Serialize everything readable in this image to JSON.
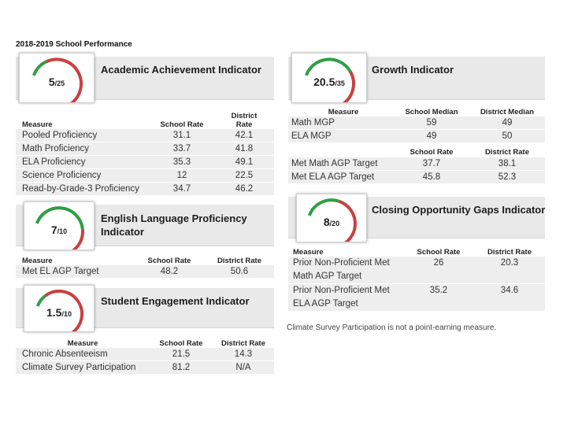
{
  "page_title": "2018-2019 School Performance",
  "colors": {
    "gauge_red": "#c9403f",
    "gauge_green": "#2f9e44",
    "band": "#e9e9e9",
    "row_shade": "#eeeeee"
  },
  "academic": {
    "title": "Academic Achievement Indicator",
    "score": "5",
    "max": "/25",
    "gauge_fraction": 0.2,
    "headers": [
      "Measure",
      "School Rate",
      "District Rate"
    ],
    "rows": [
      {
        "measure": "Pooled Proficiency",
        "school": "31.1",
        "district": "42.1"
      },
      {
        "measure": "Math Proficiency",
        "school": "33.7",
        "district": "41.8"
      },
      {
        "measure": "ELA Proficiency",
        "school": "35.3",
        "district": "49.1"
      },
      {
        "measure": "Science Proficiency",
        "school": "12",
        "district": "22.5"
      },
      {
        "measure": "Read-by-Grade-3 Proficiency",
        "school": "34.7",
        "district": "46.2"
      }
    ]
  },
  "growth": {
    "title": "Growth Indicator",
    "score": "20.5",
    "max": "/35",
    "gauge_fraction": 0.586,
    "headers": [
      "Measure",
      "School Median",
      "District Median"
    ],
    "rows": [
      {
        "measure": "Math MGP",
        "school": "59",
        "district": "49"
      },
      {
        "measure": "ELA MGP",
        "school": "49",
        "district": "50"
      }
    ],
    "sub_headers": [
      "School Rate",
      "District Rate"
    ],
    "rows2": [
      {
        "measure": "Met Math AGP Target",
        "school": "37.7",
        "district": "38.1"
      },
      {
        "measure": "Met ELA AGP Target",
        "school": "45.8",
        "district": "52.3"
      }
    ]
  },
  "elp": {
    "title_line1": "English Language Proficiency",
    "title_line2": "Indicator",
    "score": "7",
    "max": "/10",
    "gauge_fraction": 0.7,
    "headers": [
      "Measure",
      "School Rate",
      "District Rate"
    ],
    "rows": [
      {
        "measure": "Met EL AGP Target",
        "school": "48.2",
        "district": "50.6"
      }
    ]
  },
  "gaps": {
    "title": "Closing Opportunity Gaps Indicator",
    "score": "8",
    "max": "/20",
    "gauge_fraction": 0.4,
    "headers": [
      "Measure",
      "School Rate",
      "District Rate"
    ],
    "rows": [
      {
        "measure_line1": "Prior Non-Proficient Met",
        "measure_line2": "Math AGP Target",
        "school": "26",
        "district": "20.3"
      },
      {
        "measure_line1": "Prior Non-Proficient Met",
        "measure_line2": "ELA AGP Target",
        "school": "35.2",
        "district": "34.6"
      }
    ],
    "note": "Climate Survey Participation is not a point-earning measure."
  },
  "engagement": {
    "title": "Student Engagement Indicator",
    "score": "1.5",
    "max": "/10",
    "gauge_fraction": 0.15,
    "headers": [
      "Measure",
      "School Rate",
      "District Rate"
    ],
    "rows": [
      {
        "measure": "Chronic Absenteeism",
        "school": "21.5",
        "district": "14.3"
      },
      {
        "measure": "Climate Survey Participation",
        "school": "81.2",
        "district": "N/A"
      }
    ]
  }
}
